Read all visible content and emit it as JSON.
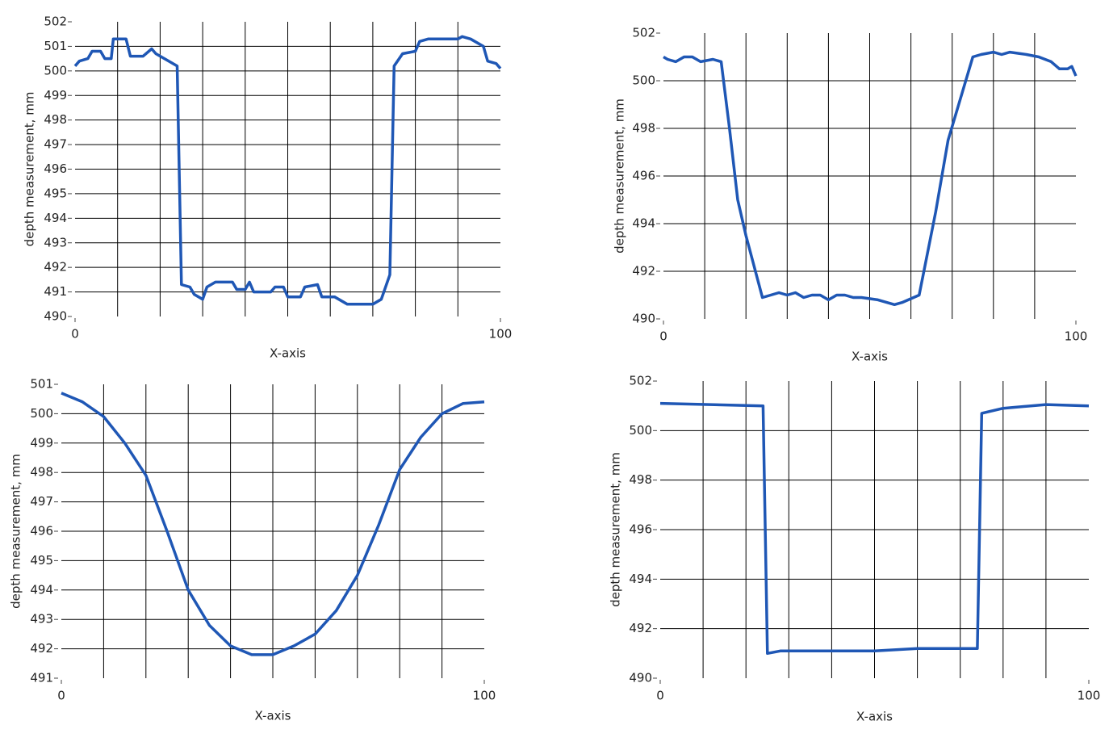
{
  "chart_data": [
    {
      "type": "line",
      "x_label": "X-axis",
      "y_label": "depth measurement, mm",
      "color": "#1f57b5",
      "xlim": [
        0,
        100
      ],
      "xticks": [
        0,
        100
      ],
      "xgrid": [
        10,
        20,
        30,
        40,
        50,
        60,
        70,
        80,
        90
      ],
      "ylim": [
        490,
        502
      ],
      "yticks": [
        490,
        491,
        492,
        493,
        494,
        495,
        496,
        497,
        498,
        499,
        500,
        501,
        502
      ],
      "grid": true,
      "x": [
        0,
        1,
        3,
        4,
        6,
        7,
        8.5,
        9,
        12,
        13,
        16,
        18,
        19,
        21,
        24,
        25,
        27,
        28,
        30,
        31,
        33,
        37,
        38,
        40,
        41,
        42,
        46,
        47,
        49,
        50,
        53,
        54,
        57,
        58,
        61,
        64,
        70,
        72,
        74,
        75,
        77,
        80,
        81,
        83,
        90,
        91,
        93,
        96,
        97,
        99,
        100
      ],
      "values": [
        500.2,
        500.4,
        500.5,
        500.8,
        500.8,
        500.5,
        500.5,
        501.3,
        501.3,
        500.6,
        500.6,
        500.9,
        500.7,
        500.5,
        500.2,
        491.3,
        491.2,
        490.9,
        490.7,
        491.2,
        491.4,
        491.4,
        491.1,
        491.1,
        491.4,
        491.0,
        491.0,
        491.2,
        491.2,
        490.8,
        490.8,
        491.2,
        491.3,
        490.8,
        490.8,
        490.5,
        490.5,
        490.7,
        491.7,
        500.2,
        500.7,
        500.8,
        501.2,
        501.3,
        501.3,
        501.4,
        501.3,
        501.0,
        500.4,
        500.3,
        500.1
      ]
    },
    {
      "type": "line",
      "x_label": "X-axis",
      "y_label": "depth measurement, mm",
      "color": "#1f57b5",
      "xlim": [
        0,
        100
      ],
      "xticks": [
        0,
        100
      ],
      "xgrid": [
        10,
        20,
        30,
        40,
        50,
        60,
        70,
        80,
        90
      ],
      "ylim": [
        490,
        502
      ],
      "yticks": [
        490,
        492,
        494,
        496,
        498,
        500,
        502
      ],
      "grid": true,
      "x": [
        0,
        1,
        3,
        5,
        7,
        9,
        12,
        14,
        16,
        18,
        20,
        24,
        26,
        28,
        30,
        32,
        34,
        36,
        38,
        40,
        42,
        44,
        46,
        48,
        52,
        56,
        58,
        62,
        66,
        69,
        75,
        77,
        80,
        82,
        84,
        88,
        91,
        94,
        96,
        98,
        99,
        100
      ],
      "values": [
        501.0,
        500.9,
        500.8,
        501.0,
        501.0,
        500.8,
        500.9,
        500.8,
        498.0,
        495.0,
        493.5,
        490.9,
        491.0,
        491.1,
        491.0,
        491.1,
        490.9,
        491.0,
        491.0,
        490.8,
        491.0,
        491.0,
        490.9,
        490.9,
        490.8,
        490.6,
        490.7,
        491.0,
        494.5,
        497.5,
        501.0,
        501.1,
        501.2,
        501.1,
        501.2,
        501.1,
        501.0,
        500.8,
        500.5,
        500.5,
        500.6,
        500.2
      ]
    },
    {
      "type": "line",
      "x_label": "X-axis",
      "y_label": "depth measurement, mm",
      "color": "#1f57b5",
      "xlim": [
        0,
        100
      ],
      "xticks": [
        0,
        100
      ],
      "xgrid": [
        10,
        20,
        30,
        40,
        50,
        60,
        70,
        80,
        90
      ],
      "ylim": [
        491,
        501
      ],
      "yticks": [
        491,
        492,
        493,
        494,
        495,
        496,
        497,
        498,
        499,
        500,
        501
      ],
      "grid": true,
      "x": [
        0,
        5,
        10,
        15,
        20,
        25,
        30,
        35,
        40,
        45,
        50,
        55,
        60,
        65,
        70,
        75,
        80,
        85,
        90,
        95,
        100
      ],
      "values": [
        500.7,
        500.4,
        499.9,
        499.0,
        497.9,
        496.0,
        494.0,
        492.8,
        492.1,
        491.8,
        491.8,
        492.1,
        492.5,
        493.3,
        494.5,
        496.2,
        498.1,
        499.2,
        500.0,
        500.35,
        500.4
      ]
    },
    {
      "type": "line",
      "x_label": "X-axis",
      "y_label": "depth measurement, mm",
      "color": "#1f57b5",
      "xlim": [
        0,
        100
      ],
      "xticks": [
        0,
        100
      ],
      "xgrid": [
        10,
        20,
        30,
        40,
        50,
        60,
        70,
        80,
        90
      ],
      "ylim": [
        490,
        502
      ],
      "yticks": [
        490,
        492,
        494,
        496,
        498,
        500,
        502
      ],
      "grid": true,
      "x": [
        0,
        24,
        25,
        28,
        50,
        60,
        74,
        75,
        80,
        90,
        100
      ],
      "values": [
        501.1,
        501.0,
        491.0,
        491.1,
        491.1,
        491.2,
        491.2,
        500.7,
        500.9,
        501.05,
        501.0
      ]
    }
  ]
}
